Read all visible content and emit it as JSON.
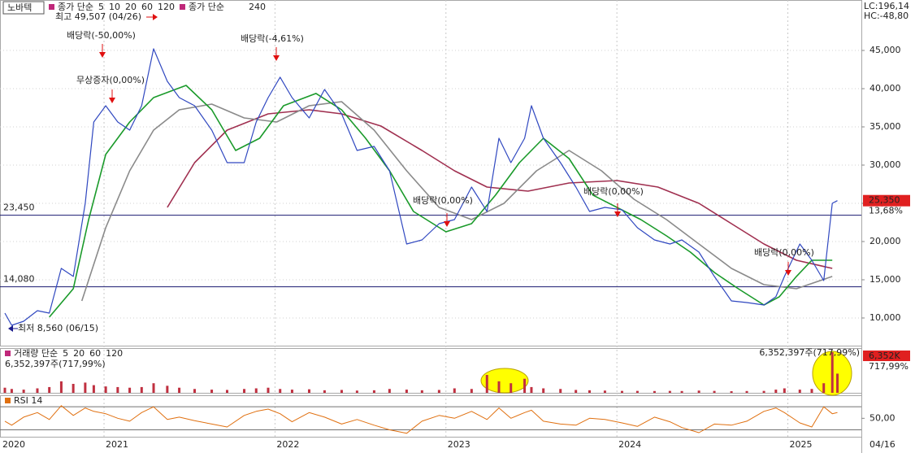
{
  "header": {
    "stock": "노바텍",
    "lc": "LC:196,14",
    "hc": "HC:-48,80"
  },
  "chart_data": [
    {
      "type": "line",
      "legend_label": "종가 단순",
      "legend_extra": [
        {
          "name": "5",
          "color": "#1a1a8c"
        },
        {
          "name": "10",
          "color": "#1a1a8c"
        },
        {
          "name": "20",
          "color": "#e8a000"
        }
      ],
      "legend_label_2": "종가 단순",
      "x_start_label": "2020",
      "x_end_label": "04/16",
      "xlim": [
        2020.42,
        2025.43
      ],
      "xticks": [
        {
          "value": 2021,
          "label": "2021"
        },
        {
          "value": 2022,
          "label": "2022"
        },
        {
          "value": 2023,
          "label": "2023"
        },
        {
          "value": 2024,
          "label": "2024"
        },
        {
          "value": 2025,
          "label": "2025"
        }
      ],
      "ylim": [
        6380,
        51600
      ],
      "yticks": [
        {
          "value": 10000,
          "label": "10,000"
        },
        {
          "value": 15000,
          "label": "15,000"
        },
        {
          "value": 20000,
          "label": "20,000"
        },
        {
          "value": 25000,
          "label": "25,000"
        },
        {
          "value": 30000,
          "label": "30,000"
        },
        {
          "value": 35000,
          "label": "35,000"
        },
        {
          "value": 40000,
          "label": "40,000"
        },
        {
          "value": 45000,
          "label": "45,000"
        }
      ],
      "grid": true,
      "price": {
        "color": "#3048c0",
        "x": [
          2020.42,
          2020.46,
          2020.53,
          2020.61,
          2020.68,
          2020.75,
          2020.82,
          2020.89,
          2020.94,
          2021.01,
          2021.08,
          2021.15,
          2021.22,
          2021.29,
          2021.37,
          2021.44,
          2021.53,
          2021.63,
          2021.72,
          2021.82,
          2021.89,
          2021.96,
          2022.03,
          2022.1,
          2022.2,
          2022.29,
          2022.39,
          2022.48,
          2022.58,
          2022.67,
          2022.77,
          2022.86,
          2022.96,
          2023.05,
          2023.15,
          2023.24,
          2023.31,
          2023.38,
          2023.46,
          2023.5,
          2023.57,
          2023.67,
          2023.76,
          2023.84,
          2023.93,
          2024.03,
          2024.12,
          2024.22,
          2024.31,
          2024.38,
          2024.48,
          2024.57,
          2024.67,
          2024.76,
          2024.86,
          2024.93,
          2024.98,
          2025.07,
          2025.14,
          2025.21,
          2025.26,
          2025.29
        ],
        "values": [
          10640,
          9040,
          9570,
          10960,
          10640,
          16490,
          15430,
          25000,
          35640,
          37770,
          35640,
          34580,
          37770,
          45220,
          40960,
          38830,
          37770,
          34580,
          30320,
          30320,
          35640,
          38830,
          41500,
          38830,
          36170,
          39900,
          36700,
          31920,
          32450,
          29260,
          19680,
          20210,
          22340,
          22870,
          27130,
          23940,
          33510,
          30320,
          33510,
          37770,
          33510,
          30320,
          27130,
          23940,
          24470,
          24150,
          21810,
          20210,
          19680,
          20210,
          18620,
          15430,
          12230,
          12020,
          11700,
          12770,
          15430,
          19680,
          17550,
          14890,
          25000,
          25350
        ]
      },
      "series": [
        {
          "name": "60",
          "color": "#1a9a2a",
          "x": [
            2020.68,
            2020.82,
            2020.91,
            2021.01,
            2021.15,
            2021.29,
            2021.48,
            2021.63,
            2021.77,
            2021.91,
            2022.05,
            2022.24,
            2022.39,
            2022.53,
            2022.67,
            2022.81,
            2023.0,
            2023.15,
            2023.29,
            2023.43,
            2023.57,
            2023.72,
            2023.86,
            2024.0,
            2024.14,
            2024.29,
            2024.43,
            2024.57,
            2024.71,
            2024.86,
            2024.95,
            2025.05,
            2025.14,
            2025.26
          ],
          "values": [
            10110,
            13830,
            22870,
            31390,
            35640,
            38830,
            40430,
            37240,
            31920,
            33510,
            37770,
            39370,
            37240,
            33510,
            29260,
            23940,
            21280,
            22340,
            26070,
            30320,
            33510,
            30850,
            26070,
            24470,
            22870,
            20740,
            18620,
            15960,
            13830,
            11700,
            12770,
            15430,
            17550,
            17550
          ]
        },
        {
          "name": "120",
          "color": "#8a8a8a",
          "x": [
            2020.87,
            2021.01,
            2021.15,
            2021.29,
            2021.44,
            2021.63,
            2021.82,
            2022.01,
            2022.2,
            2022.39,
            2022.58,
            2022.77,
            2022.96,
            2023.15,
            2023.34,
            2023.53,
            2023.72,
            2023.91,
            2024.1,
            2024.29,
            2024.48,
            2024.67,
            2024.86,
            2025.05,
            2025.26
          ],
          "values": [
            12230,
            21810,
            29260,
            34580,
            37240,
            37980,
            36170,
            35640,
            37770,
            38300,
            34580,
            29260,
            24470,
            22870,
            25000,
            29260,
            31920,
            29260,
            25530,
            22870,
            19680,
            16490,
            14360,
            13830,
            15430
          ]
        },
        {
          "name": "240",
          "color": "#a03050",
          "x": [
            2021.37,
            2021.53,
            2021.72,
            2021.96,
            2022.2,
            2022.39,
            2022.62,
            2022.86,
            2023.05,
            2023.24,
            2023.48,
            2023.72,
            2024.0,
            2024.24,
            2024.48,
            2024.67,
            2024.86,
            2025.05,
            2025.26
          ],
          "values": [
            24470,
            30320,
            34580,
            36700,
            37240,
            36700,
            35110,
            31920,
            29260,
            27130,
            26600,
            27660,
            27980,
            27130,
            25000,
            22340,
            19680,
            17550,
            16490
          ]
        }
      ],
      "hlines": [
        {
          "value": 23450,
          "label": "23,450"
        },
        {
          "value": 14080,
          "label": "14,080"
        }
      ],
      "last_value": {
        "value": 25350,
        "label": "25,350"
      },
      "last_change": "13,68%",
      "annotations": [
        "최고 49,507 (04/26)",
        "최저 8,560 (06/15)",
        "배당락(-50,00%)",
        "무상증자(0,00%)",
        "배당락(-4,61%)",
        "배당락(0,00%)",
        "배당락(0,00%)",
        "배당락(0,00%)"
      ]
    },
    {
      "type": "bar",
      "legend_label": "거래량 단순",
      "legend_items": [
        {
          "name": "5",
          "color": "#1a1a8c"
        },
        {
          "name": "20",
          "color": "#e8a000"
        },
        {
          "name": "60",
          "color": "#1a9a2a"
        },
        {
          "name": "120",
          "color": "#8a8a8a"
        }
      ],
      "volume_label": "6,352,397주(717,99%)",
      "last_value_label": "6,352K",
      "last_change": "717,99%",
      "color": "#c03040",
      "ylim": [
        0,
        7000000
      ],
      "x": [
        2020.42,
        2020.46,
        2020.53,
        2020.61,
        2020.68,
        2020.75,
        2020.82,
        2020.89,
        2020.94,
        2021.01,
        2021.08,
        2021.15,
        2021.22,
        2021.29,
        2021.37,
        2021.44,
        2021.53,
        2021.63,
        2021.72,
        2021.82,
        2021.89,
        2021.96,
        2022.03,
        2022.1,
        2022.2,
        2022.29,
        2022.39,
        2022.48,
        2022.58,
        2022.67,
        2022.77,
        2022.86,
        2022.96,
        2023.05,
        2023.15,
        2023.24,
        2023.31,
        2023.38,
        2023.46,
        2023.5,
        2023.57,
        2023.67,
        2023.76,
        2023.84,
        2023.93,
        2024.03,
        2024.12,
        2024.22,
        2024.31,
        2024.38,
        2024.48,
        2024.57,
        2024.67,
        2024.76,
        2024.86,
        2024.93,
        2024.98,
        2025.07,
        2025.14,
        2025.21,
        2025.26,
        2025.29
      ],
      "values": [
        800000,
        600000,
        500000,
        700000,
        900000,
        1800000,
        1400000,
        1600000,
        1200000,
        1000000,
        900000,
        800000,
        900000,
        1500000,
        1100000,
        800000,
        600000,
        500000,
        450000,
        600000,
        700000,
        800000,
        600000,
        500000,
        550000,
        400000,
        450000,
        350000,
        400000,
        600000,
        500000,
        400000,
        450000,
        700000,
        600000,
        2800000,
        1800000,
        1500000,
        2200000,
        900000,
        700000,
        600000,
        450000,
        400000,
        350000,
        300000,
        300000,
        280000,
        300000,
        280000,
        350000,
        300000,
        250000,
        280000,
        300000,
        500000,
        700000,
        500000,
        600000,
        1500000,
        6352397,
        3000000
      ]
    },
    {
      "type": "line",
      "legend_label": "RSI 14",
      "color": "#e07010",
      "ylim": [
        18,
        90
      ],
      "yticks": [
        {
          "value": 50,
          "label": "50,00"
        }
      ],
      "ref_lines": [
        30,
        70
      ],
      "x": [
        2020.42,
        2020.46,
        2020.53,
        2020.61,
        2020.68,
        2020.75,
        2020.82,
        2020.89,
        2020.94,
        2021.01,
        2021.08,
        2021.15,
        2021.22,
        2021.29,
        2021.37,
        2021.44,
        2021.53,
        2021.63,
        2021.72,
        2021.82,
        2021.89,
        2021.96,
        2022.03,
        2022.1,
        2022.2,
        2022.29,
        2022.39,
        2022.48,
        2022.58,
        2022.67,
        2022.77,
        2022.86,
        2022.96,
        2023.05,
        2023.15,
        2023.24,
        2023.31,
        2023.38,
        2023.46,
        2023.5,
        2023.57,
        2023.67,
        2023.76,
        2023.84,
        2023.93,
        2024.03,
        2024.12,
        2024.22,
        2024.31,
        2024.38,
        2024.48,
        2024.57,
        2024.67,
        2024.76,
        2024.86,
        2024.93,
        2024.98,
        2025.07,
        2025.14,
        2025.21,
        2025.26,
        2025.29
      ],
      "values": [
        45,
        38,
        52,
        60,
        48,
        72,
        55,
        68,
        62,
        58,
        50,
        45,
        60,
        70,
        48,
        52,
        46,
        40,
        35,
        55,
        62,
        66,
        58,
        44,
        60,
        52,
        40,
        48,
        38,
        30,
        24,
        45,
        55,
        50,
        62,
        48,
        68,
        50,
        60,
        64,
        45,
        40,
        38,
        50,
        48,
        42,
        36,
        52,
        44,
        34,
        25,
        40,
        38,
        45,
        62,
        68,
        60,
        42,
        35,
        70,
        58,
        60
      ]
    }
  ]
}
